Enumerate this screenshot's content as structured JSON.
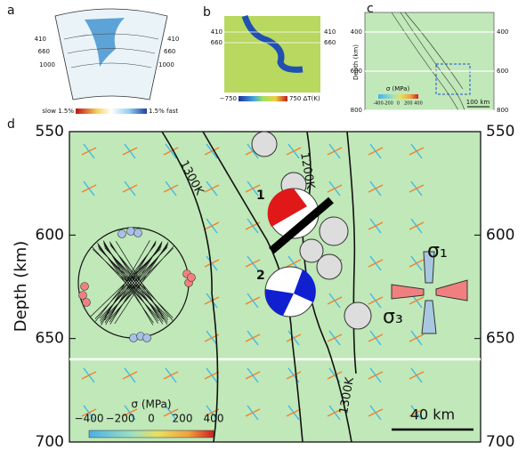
{
  "panel_a": {
    "label": "a",
    "depths_left": [
      "410",
      "660",
      "1000"
    ],
    "depths_right": [
      "410",
      "660",
      "1000"
    ],
    "colorbar_left": "slow 1.5%",
    "colorbar_right": "1.5% fast"
  },
  "panel_b": {
    "label": "b",
    "depths": [
      "410",
      "660"
    ],
    "colorbar_min": "−750",
    "colorbar_max": "750 ΔT(K)"
  },
  "panel_c": {
    "label": "c",
    "ylim": [
      300,
      800
    ],
    "yticks": [
      400,
      600,
      800
    ],
    "ylabel": "Depth (km)",
    "colorbar_title": "σ (MPa)",
    "colorbar_ticks": [
      "-400",
      "-200",
      "0",
      "200",
      "400"
    ],
    "scale": "100 km"
  },
  "panel_d": {
    "label": "d",
    "ylabel": "Depth (km)",
    "ylim": [
      550,
      700
    ],
    "yticks": [
      550,
      600,
      650,
      700
    ],
    "contours": [
      "1300K",
      "1200K",
      "1300K"
    ],
    "events": [
      "1",
      "2"
    ],
    "sigma1": "σ₁",
    "sigma3": "σ₃",
    "colorbar_title": "σ (MPa)",
    "colorbar_ticks": [
      "−400",
      "−200",
      "0",
      "200",
      "400"
    ],
    "scale": "40 km"
  }
}
